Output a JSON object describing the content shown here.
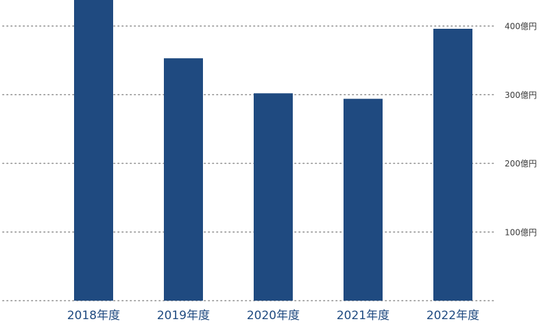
{
  "chart_data": {
    "type": "bar",
    "categories": [
      "2018年度",
      "2019年度",
      "2020年度",
      "2021年度",
      "2022年度"
    ],
    "values": [
      438,
      353,
      302,
      294,
      396
    ],
    "ylim": [
      0,
      438
    ],
    "yticks": [
      {
        "value": 100,
        "label": "100億円"
      },
      {
        "value": 200,
        "label": "200億円"
      },
      {
        "value": 300,
        "label": "300億円"
      },
      {
        "value": 400,
        "label": "400億円"
      }
    ],
    "grid": true,
    "bar_color": "#1f4a80",
    "title": "",
    "xlabel": "",
    "ylabel": ""
  }
}
